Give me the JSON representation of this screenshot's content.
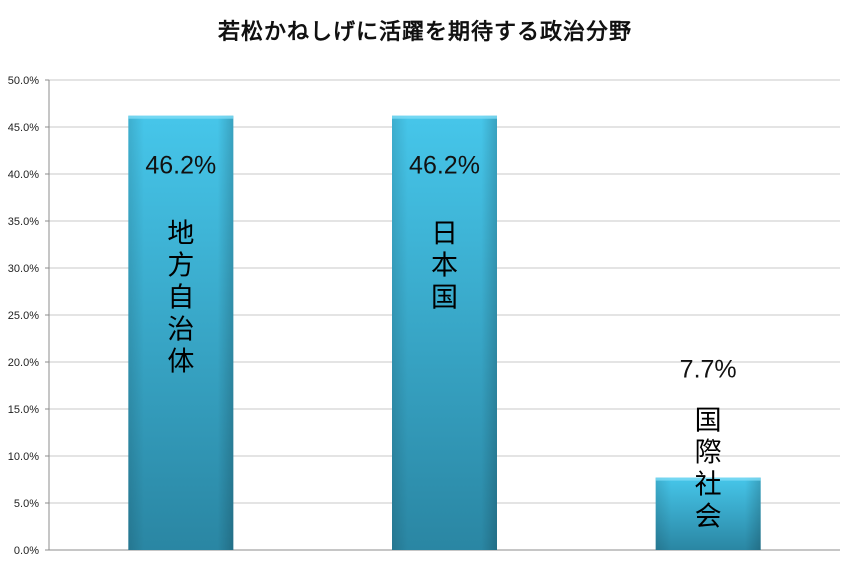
{
  "chart_data": {
    "type": "bar",
    "title": "若松かねしげに活躍を期待する政治分野",
    "categories": [
      "地方自治体",
      "日本国",
      "国際社会"
    ],
    "values": [
      46.2,
      46.2,
      7.7
    ],
    "value_labels": [
      "46.2%",
      "46.2%",
      "7.7%"
    ],
    "ylim": [
      0,
      50
    ],
    "yticks": [
      "0.0%",
      "5.0%",
      "10.0%",
      "15.0%",
      "20.0%",
      "25.0%",
      "30.0%",
      "35.0%",
      "40.0%",
      "45.0%",
      "50.0%"
    ],
    "xlabel": "",
    "ylabel": "",
    "grid": true,
    "legend": "none",
    "bar_color_top": "#43c3e6",
    "bar_color_bottom": "#2b8aa6"
  }
}
